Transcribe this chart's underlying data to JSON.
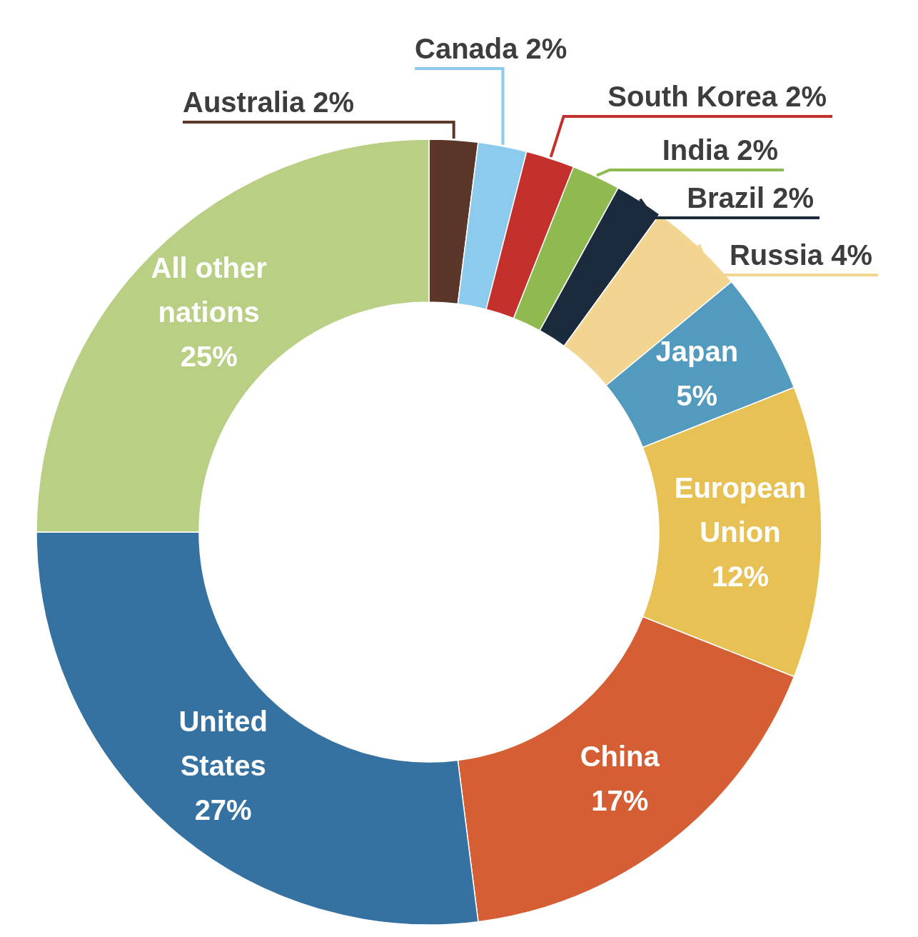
{
  "chart_data": {
    "type": "donut",
    "categories": [
      "Australia",
      "Canada",
      "South Korea",
      "India",
      "Brazil",
      "Russia",
      "Japan",
      "European Union",
      "China",
      "United States",
      "All other nations"
    ],
    "values": [
      2,
      2,
      2,
      2,
      2,
      4,
      5,
      12,
      17,
      27,
      25
    ],
    "colors": [
      "#5a3728",
      "#8ccbee",
      "#c4302b",
      "#8fba50",
      "#1b2a3d",
      "#f2d590",
      "#539abf",
      "#e8c155",
      "#d65e35",
      "#3672a1",
      "#b8cf84"
    ],
    "value_labels": [
      "2%",
      "2%",
      "2%",
      "2%",
      "2%",
      "4%",
      "5%",
      "12%",
      "17%",
      "27%",
      "25%"
    ]
  }
}
